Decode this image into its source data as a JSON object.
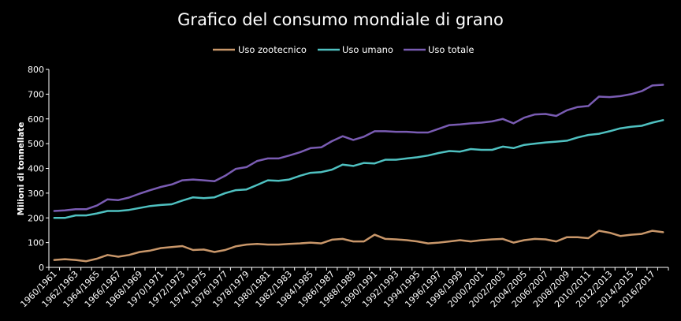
{
  "chart_data": {
    "type": "line",
    "title": "Grafico del consumo mondiale di grano",
    "ylabel": "Milioni di tonnellate",
    "xlabel": "",
    "ylim": [
      0,
      800
    ],
    "yticks": [
      0,
      100,
      200,
      300,
      400,
      500,
      600,
      700,
      800
    ],
    "grid": false,
    "legend_position": "top",
    "x": [
      "1960/1961",
      "1961/1962",
      "1962/1963",
      "1963/1964",
      "1964/1965",
      "1965/1966",
      "1966/1967",
      "1967/1968",
      "1968/1969",
      "1969/1970",
      "1970/1971",
      "1971/1972",
      "1972/1973",
      "1973/1974",
      "1974/1975",
      "1975/1976",
      "1976/1977",
      "1977/1978",
      "1978/1979",
      "1979/1980",
      "1980/1981",
      "1981/1982",
      "1982/1983",
      "1983/1984",
      "1984/1985",
      "1985/1986",
      "1986/1987",
      "1987/1988",
      "1988/1989",
      "1989/1990",
      "1990/1991",
      "1991/1992",
      "1992/1993",
      "1993/1994",
      "1994/1995",
      "1995/1996",
      "1996/1997",
      "1997/1998",
      "1998/1999",
      "1999/2000",
      "2000/2001",
      "2001/2002",
      "2002/2003",
      "2003/2004",
      "2004/2005",
      "2005/2006",
      "2006/2007",
      "2007/2008",
      "2008/2009",
      "2009/2010",
      "2010/2011",
      "2011/2012",
      "2012/2013",
      "2013/2014",
      "2014/2015",
      "2015/2016",
      "2016/2017",
      "2017/2018"
    ],
    "x_tick_labels": [
      "1960/1961",
      "1962/1963",
      "1964/1965",
      "1966/1967",
      "1968/1969",
      "1970/1971",
      "1972/1973",
      "1974/1975",
      "1976/1977",
      "1978/1979",
      "1980/1981",
      "1982/1983",
      "1984/1985",
      "1986/1987",
      "1988/1989",
      "1990/1991",
      "1992/1993",
      "1994/1995",
      "1996/1997",
      "1998/1999",
      "2000/2001",
      "2002/2003",
      "2004/2005",
      "2006/2007",
      "2008/2009",
      "2010/2011",
      "2012/2013",
      "2014/2015",
      "2016/2017"
    ],
    "series": [
      {
        "name": "Uso zootecnico",
        "color": "#c9976a",
        "values": [
          30,
          33,
          30,
          25,
          35,
          50,
          43,
          50,
          62,
          68,
          78,
          82,
          86,
          70,
          72,
          62,
          70,
          85,
          92,
          95,
          92,
          92,
          95,
          97,
          100,
          97,
          112,
          115,
          105,
          105,
          132,
          115,
          113,
          110,
          105,
          97,
          100,
          105,
          110,
          105,
          110,
          113,
          115,
          100,
          110,
          115,
          113,
          105,
          122,
          122,
          118,
          148,
          140,
          127,
          132,
          135,
          148,
          142
        ]
      },
      {
        "name": "Uso umano",
        "color": "#4fc1c1",
        "values": [
          200,
          200,
          210,
          210,
          218,
          228,
          228,
          232,
          240,
          248,
          252,
          255,
          270,
          283,
          280,
          283,
          300,
          312,
          315,
          333,
          352,
          350,
          355,
          370,
          382,
          385,
          395,
          415,
          410,
          422,
          420,
          435,
          435,
          440,
          445,
          452,
          462,
          470,
          468,
          478,
          475,
          475,
          488,
          482,
          495,
          500,
          505,
          508,
          512,
          525,
          535,
          540,
          550,
          562,
          568,
          572,
          585,
          595
        ]
      },
      {
        "name": "Uso totale",
        "color": "#7a5cb3",
        "values": [
          228,
          230,
          235,
          235,
          250,
          275,
          272,
          282,
          298,
          312,
          325,
          335,
          352,
          355,
          352,
          348,
          370,
          398,
          405,
          430,
          440,
          440,
          452,
          465,
          482,
          485,
          510,
          530,
          515,
          528,
          550,
          550,
          548,
          548,
          545,
          545,
          560,
          575,
          578,
          582,
          585,
          590,
          600,
          582,
          605,
          618,
          620,
          612,
          635,
          648,
          652,
          690,
          688,
          692,
          700,
          712,
          735,
          738
        ]
      }
    ]
  }
}
